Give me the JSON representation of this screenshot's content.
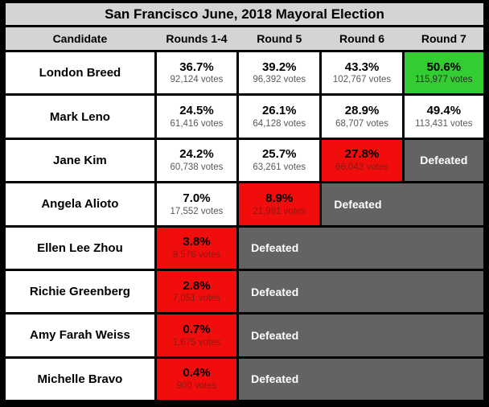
{
  "chart_data": {
    "type": "table",
    "title": "San Francisco June, 2018 Mayoral Election",
    "columns": [
      "Candidate",
      "Rounds 1-4",
      "Round 5",
      "Round 6",
      "Round 7"
    ],
    "rows": [
      {
        "candidate": "London Breed",
        "cells": [
          {
            "pct": "36.7%",
            "votes": "92,124 votes",
            "state": "active"
          },
          {
            "pct": "39.2%",
            "votes": "96,392 votes",
            "state": "active"
          },
          {
            "pct": "43.3%",
            "votes": "102,767 votes",
            "state": "active"
          },
          {
            "pct": "50.6%",
            "votes": "115,977 votes",
            "state": "winner"
          }
        ],
        "defeated": null
      },
      {
        "candidate": "Mark Leno",
        "cells": [
          {
            "pct": "24.5%",
            "votes": "61,416 votes",
            "state": "active"
          },
          {
            "pct": "26.1%",
            "votes": "64,128 votes",
            "state": "active"
          },
          {
            "pct": "28.9%",
            "votes": "68,707 votes",
            "state": "active"
          },
          {
            "pct": "49.4%",
            "votes": "113,431 votes",
            "state": "active"
          }
        ],
        "defeated": null
      },
      {
        "candidate": "Jane Kim",
        "cells": [
          {
            "pct": "24.2%",
            "votes": "60,738 votes",
            "state": "active"
          },
          {
            "pct": "25.7%",
            "votes": "63,261 votes",
            "state": "active"
          },
          {
            "pct": "27.8%",
            "votes": "66,043 votes",
            "state": "eliminated"
          }
        ],
        "defeated": {
          "label": "Defeated",
          "span": 1
        }
      },
      {
        "candidate": "Angela Alioto",
        "cells": [
          {
            "pct": "7.0%",
            "votes": "17,552 votes",
            "state": "active"
          },
          {
            "pct": "8.9%",
            "votes": "21,981 votes",
            "state": "eliminated"
          }
        ],
        "defeated": {
          "label": "Defeated",
          "span": 2
        }
      },
      {
        "candidate": "Ellen Lee Zhou",
        "cells": [
          {
            "pct": "3.8%",
            "votes": "9,576 votes",
            "state": "eliminated"
          }
        ],
        "defeated": {
          "label": "Defeated",
          "span": 3
        }
      },
      {
        "candidate": "Richie Greenberg",
        "cells": [
          {
            "pct": "2.8%",
            "votes": "7,051 votes",
            "state": "eliminated"
          }
        ],
        "defeated": {
          "label": "Defeated",
          "span": 3
        }
      },
      {
        "candidate": "Amy Farah Weiss",
        "cells": [
          {
            "pct": "0.7%",
            "votes": "1,675 votes",
            "state": "eliminated"
          }
        ],
        "defeated": {
          "label": "Defeated",
          "span": 3
        }
      },
      {
        "candidate": "Michelle Bravo",
        "cells": [
          {
            "pct": "0.4%",
            "votes": "900 votes",
            "state": "eliminated"
          }
        ],
        "defeated": {
          "label": "Defeated",
          "span": 3
        }
      }
    ],
    "colors": {
      "winner_green": "#33cc33",
      "eliminated_red": "#f20d0d",
      "defeated_gray": "#636363",
      "header_gray": "#d4d4d4",
      "border_black": "#000000"
    },
    "legend_meaning": {
      "green": "winner (majority reached)",
      "red": "eliminated in that round",
      "gray": "defeated"
    }
  }
}
